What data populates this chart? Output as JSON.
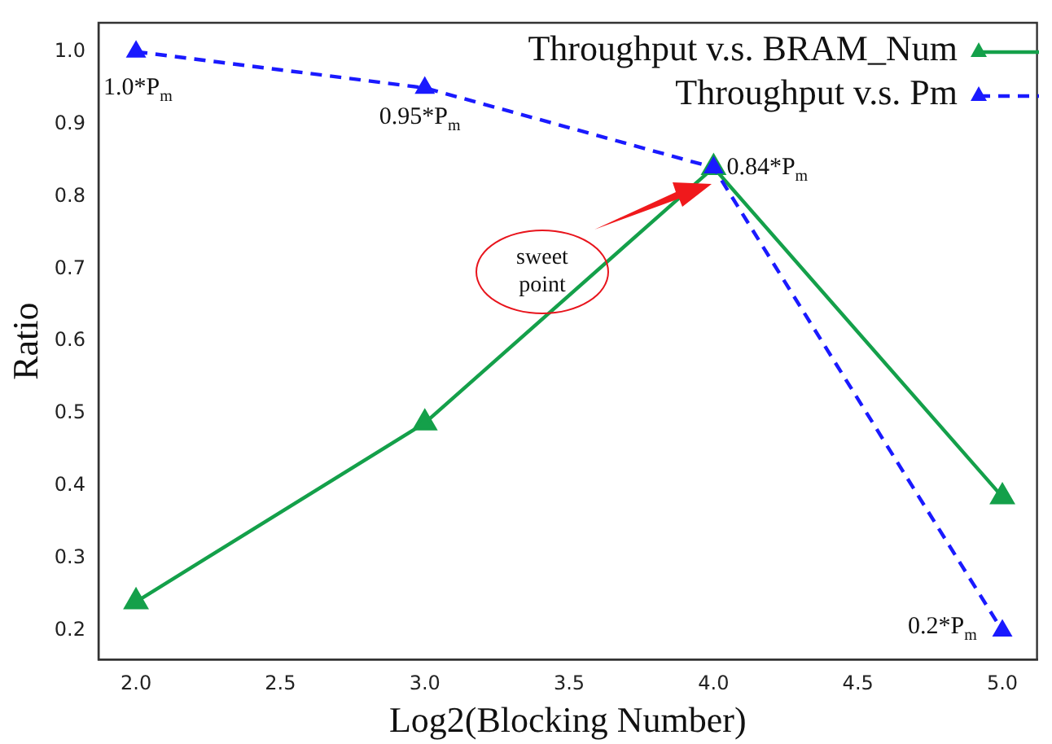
{
  "chart_data": {
    "type": "line",
    "xlabel": "Log2(Blocking Number)",
    "ylabel": "Ratio",
    "xlim": [
      1.87,
      5.12
    ],
    "ylim": [
      0.16,
      1.04
    ],
    "xticks": [
      {
        "value": 2,
        "label": "2.0"
      },
      2.5,
      {
        "value": 3,
        "label": "3.0"
      },
      3.5,
      {
        "value": 4,
        "label": "4.0"
      },
      4.5,
      {
        "value": 5,
        "label": "5.0"
      }
    ],
    "yticks": [
      0.2,
      0.3,
      0.4,
      0.5,
      0.6,
      0.7,
      0.8,
      0.9,
      {
        "value": 1,
        "label": "1.0"
      }
    ],
    "x": [
      2,
      3,
      4,
      5
    ],
    "series": [
      {
        "name": "Throughput v.s. BRAM_Num",
        "color": "#14a04a",
        "values": [
          0.24,
          0.487,
          0.84,
          0.385
        ],
        "line_style": "solid"
      },
      {
        "name": "Throughput v.s. Pm",
        "color": "#1a1aff",
        "values": [
          1.0,
          0.95,
          0.84,
          0.2
        ],
        "line_style": "dashed"
      }
    ],
    "marker": "triangle",
    "grid": false,
    "legend": "top right",
    "annotations": [
      {
        "text": "1.0*P$_{m}$",
        "x": 2,
        "y": 1.0
      },
      {
        "text": "0.95*P$_{m}$",
        "x": 3,
        "y": 0.95
      },
      {
        "text": "0.84*P$_{m}$",
        "x": 4,
        "y": 0.84
      },
      {
        "text": "0.2*P$_{m}$",
        "x": 5,
        "y": 0.2
      },
      "sweet point"
    ]
  }
}
